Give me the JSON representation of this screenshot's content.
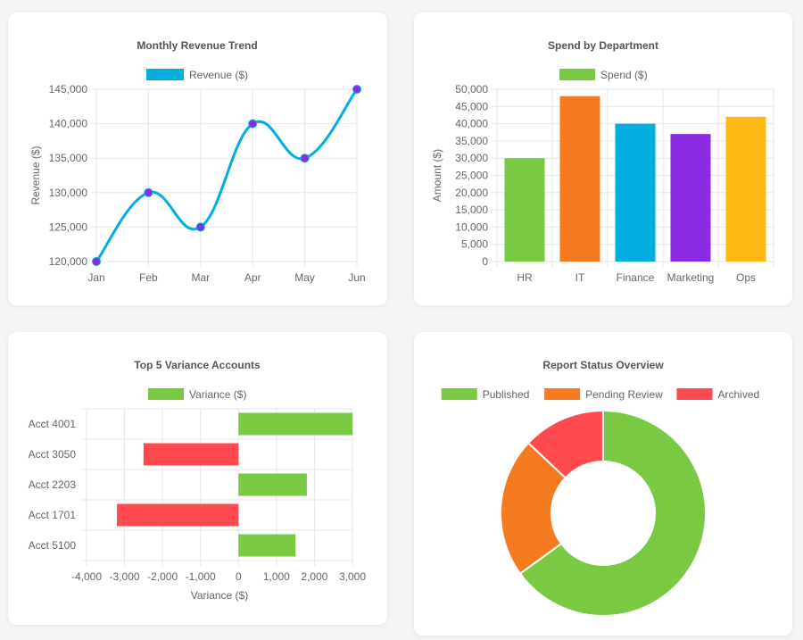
{
  "chart_data": [
    {
      "id": "revenue",
      "type": "line",
      "title": "Monthly Revenue Trend",
      "categories": [
        "Jan",
        "Feb",
        "Mar",
        "Apr",
        "May",
        "Jun"
      ],
      "series": [
        {
          "name": "Revenue ($)",
          "values": [
            120000,
            130000,
            125000,
            140000,
            135000,
            145000
          ]
        }
      ],
      "ylabel": "Revenue ($)",
      "xlabel": "",
      "ylim": [
        120000,
        145000
      ],
      "yticks": [
        "145,000",
        "140,000",
        "135,000",
        "130,000",
        "125,000",
        "120,000"
      ],
      "colors": {
        "line": "#00aee0",
        "point": "#8a2be2"
      }
    },
    {
      "id": "spend",
      "type": "bar",
      "title": "Spend by Department",
      "categories": [
        "HR",
        "IT",
        "Finance",
        "Marketing",
        "Ops"
      ],
      "series": [
        {
          "name": "Spend ($)",
          "values": [
            30000,
            48000,
            40000,
            37000,
            42000
          ]
        }
      ],
      "ylabel": "Amount ($)",
      "xlabel": "",
      "ylim": [
        0,
        50000
      ],
      "yticks": [
        "50,000",
        "45,000",
        "40,000",
        "35,000",
        "30,000",
        "25,000",
        "20,000",
        "15,000",
        "10,000",
        "5,000",
        "0"
      ],
      "colors": {
        "legend": "#7ac943",
        "bars": [
          "#7ac943",
          "#f47b20",
          "#00aee0",
          "#8a2be2",
          "#fdb813"
        ]
      }
    },
    {
      "id": "variance",
      "type": "bar",
      "orientation": "horizontal",
      "title": "Top 5 Variance Accounts",
      "categories": [
        "Acct 4001",
        "Acct 3050",
        "Acct 2203",
        "Acct 1701",
        "Acct 5100"
      ],
      "series": [
        {
          "name": "Variance ($)",
          "values": [
            3000,
            -2500,
            1800,
            -3200,
            1500
          ]
        }
      ],
      "xlabel": "Variance ($)",
      "ylabel": "",
      "xlim": [
        -4000,
        3000
      ],
      "xticks": [
        "-4,000",
        "-3,000",
        "-2,000",
        "-1,000",
        "0",
        "1,000",
        "2,000",
        "3,000"
      ],
      "colors": {
        "positive": "#7ac943",
        "negative": "#ff4a4f"
      }
    },
    {
      "id": "status",
      "type": "pie",
      "variant": "doughnut",
      "title": "Report Status Overview",
      "labels": [
        "Published",
        "Pending Review",
        "Archived"
      ],
      "values": [
        65,
        22,
        13
      ],
      "colors": [
        "#7ac943",
        "#f47b20",
        "#ff4a4f"
      ]
    }
  ]
}
